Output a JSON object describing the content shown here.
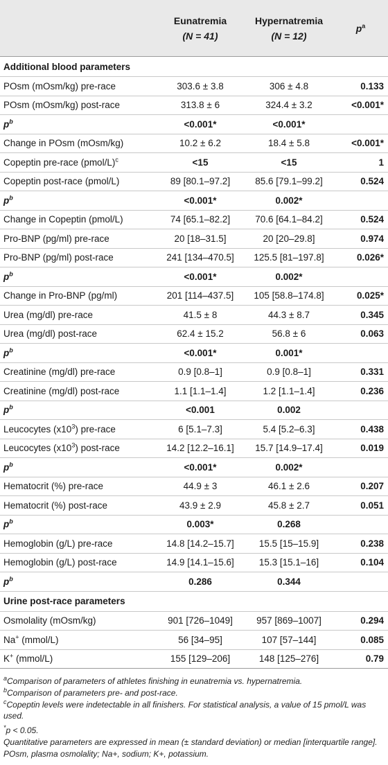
{
  "header": {
    "col1": "",
    "col2_name": "Eunatremia",
    "col2_n": "(N = 41)",
    "col3_name": "Hypernatremia",
    "col3_n": "(N = 12)",
    "col4": "p",
    "col4_sup": "a"
  },
  "sections": [
    {
      "title": "Additional blood parameters",
      "rows": [
        {
          "label": "POsm (mOsm/kg) pre-race",
          "sup": "",
          "eu": "303.6 ± 3.8",
          "hy": "306 ± 4.8",
          "p": "0.133"
        },
        {
          "label": "POsm (mOsm/kg) post-race",
          "sup": "",
          "eu": "313.8 ± 6",
          "hy": "324.4 ± 3.2",
          "p": "<0.001*"
        },
        {
          "label": "p",
          "sup": "b",
          "prow": true,
          "eu": "<0.001*",
          "hy": "<0.001*",
          "p": ""
        },
        {
          "label": "Change in POsm (mOsm/kg)",
          "sup": "",
          "eu": "10.2 ± 6.2",
          "hy": "18.4 ± 5.8",
          "p": "<0.001*"
        },
        {
          "label": "Copeptin pre-race (pmol/L)",
          "sup": "c",
          "eu": "<15",
          "hy": "<15",
          "p": "1",
          "boldvals": true
        },
        {
          "label": "Copeptin post-race (pmol/L)",
          "sup": "",
          "eu": "89 [80.1–97.2]",
          "hy": "85.6 [79.1–99.2]",
          "p": "0.524"
        },
        {
          "label": "p",
          "sup": "b",
          "prow": true,
          "eu": "<0.001*",
          "hy": "0.002*",
          "p": ""
        },
        {
          "label": "Change in Copeptin (pmol/L)",
          "sup": "",
          "eu": "74 [65.1–82.2]",
          "hy": "70.6 [64.1–84.2]",
          "p": "0.524"
        },
        {
          "label": "Pro-BNP (pg/ml) pre-race",
          "sup": "",
          "eu": "20 [18–31.5]",
          "hy": "20 [20–29.8]",
          "p": "0.974"
        },
        {
          "label": "Pro-BNP (pg/ml) post-race",
          "sup": "",
          "eu": "241 [134–470.5]",
          "hy": "125.5 [81–197.8]",
          "p": "0.026*"
        },
        {
          "label": "p",
          "sup": "b",
          "prow": true,
          "eu": "<0.001*",
          "hy": "0.002*",
          "p": ""
        },
        {
          "label": "Change in Pro-BNP (pg/ml)",
          "sup": "",
          "eu": "201 [114–437.5]",
          "hy": "105 [58.8–174.8]",
          "p": "0.025*"
        },
        {
          "label": "Urea (mg/dl) pre-race",
          "sup": "",
          "eu": "41.5 ± 8",
          "hy": "44.3 ± 8.7",
          "p": "0.345"
        },
        {
          "label": "Urea (mg/dl) post-race",
          "sup": "",
          "eu": "62.4 ± 15.2",
          "hy": "56.8 ± 6",
          "p": "0.063"
        },
        {
          "label": "p",
          "sup": "b",
          "prow": true,
          "eu": "<0.001*",
          "hy": "0.001*",
          "p": ""
        },
        {
          "label": "Creatinine (mg/dl) pre-race",
          "sup": "",
          "eu": "0.9 [0.8–1]",
          "hy": "0.9 [0.8–1]",
          "p": "0.331"
        },
        {
          "label": "Creatinine (mg/dl) post-race",
          "sup": "",
          "eu": "1.1 [1.1–1.4]",
          "hy": "1.2 [1.1–1.4]",
          "p": "0.236"
        },
        {
          "label": "p",
          "sup": "b",
          "prow": true,
          "eu": "<0.001",
          "hy": "0.002",
          "p": ""
        },
        {
          "label": "Leucocytes (x10",
          "sup3": "3",
          "label_after": ") pre-race",
          "eu": "6 [5.1–7.3]",
          "hy": "5.4 [5.2–6.3]",
          "p": "0.438"
        },
        {
          "label": "Leucocytes (x10",
          "sup3": "3",
          "label_after": ") post-race",
          "eu": "14.2 [12.2–16.1]",
          "hy": "15.7 [14.9–17.4]",
          "p": "0.019"
        },
        {
          "label": "p",
          "sup": "b",
          "prow": true,
          "eu": "<0.001*",
          "hy": "0.002*",
          "p": ""
        },
        {
          "label": "Hematocrit (%) pre-race",
          "sup": "",
          "eu": "44.9 ± 3",
          "hy": "46.1 ± 2.6",
          "p": "0.207"
        },
        {
          "label": "Hematocrit (%) post-race",
          "sup": "",
          "eu": "43.9 ± 2.9",
          "hy": "45.8 ± 2.7",
          "p": "0.051"
        },
        {
          "label": "p",
          "sup": "b",
          "prow": true,
          "eu": "0.003*",
          "hy": "0.268",
          "p": ""
        },
        {
          "label": "Hemoglobin (g/L) pre-race",
          "sup": "",
          "eu": "14.8 [14.2–15.7]",
          "hy": "15.5 [15–15.9]",
          "p": "0.238"
        },
        {
          "label": "Hemoglobin (g/L) post-race",
          "sup": "",
          "eu": "14.9 [14.1–15.6]",
          "hy": "15.3 [15.1–16]",
          "p": "0.104"
        },
        {
          "label": "p",
          "sup": "b",
          "prow": true,
          "eu": "0.286",
          "hy": "0.344",
          "p": ""
        }
      ]
    },
    {
      "title": "Urine post-race parameters",
      "rows": [
        {
          "label": "Osmolality (mOsm/kg)",
          "sup": "",
          "eu": "901 [726–1049]",
          "hy": "957 [869–1007]",
          "p": "0.294"
        },
        {
          "label": "Na",
          "sup3": "+",
          "label_after": " (mmol/L)",
          "eu": "56 [34–95]",
          "hy": "107 [57–144]",
          "p": "0.085"
        },
        {
          "label": "K",
          "sup3": "+",
          "label_after": " (mmol/L)",
          "eu": "155 [129–206]",
          "hy": "148 [125–276]",
          "p": "0.79"
        }
      ]
    }
  ],
  "footnotes": [
    {
      "sup": "a",
      "text": "Comparison of parameters of athletes finishing in eunatremia vs. hypernatremia."
    },
    {
      "sup": "b",
      "text": "Comparison of parameters pre- and post-race."
    },
    {
      "sup": "c",
      "text": "Copeptin levels were indetectable in all finishers. For statistical analysis, a value of 15 pmol/L was used."
    },
    {
      "sup": "*",
      "text": "p < 0.05."
    },
    {
      "sup": "",
      "text": "Quantitative parameters are expressed in mean (± standard deviation) or median [interquartile range]."
    },
    {
      "sup": "",
      "text": "POsm, plasma osmolality; Na+, sodium; K+, potassium."
    }
  ]
}
